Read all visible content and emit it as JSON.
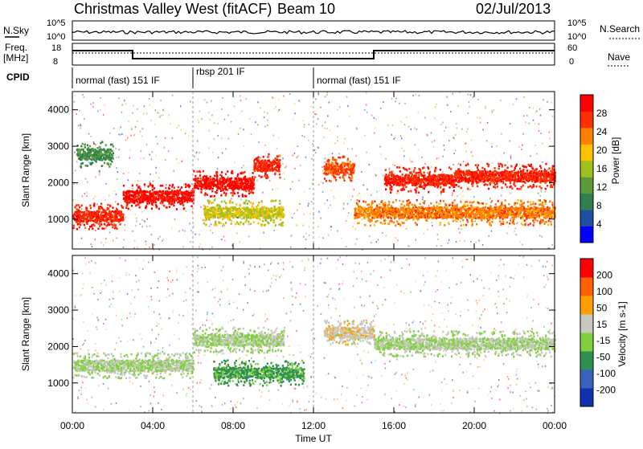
{
  "header": {
    "station": "Christmas Valley West (fitACF)",
    "beam": "Beam 10",
    "date": "02/Jul/2013"
  },
  "strips": {
    "nsky_label": "N.Sky",
    "nsky_ticks": [
      "10^5",
      "10^0"
    ],
    "nsearch_label": "N.Search",
    "nsearch_ticks": [
      "10^5",
      "10^0"
    ],
    "freq_label": "Freq.",
    "freq_unit": "[MHz]",
    "freq_ticks": [
      "18",
      "8"
    ],
    "nave_label": "Nave",
    "nave_ticks": [
      "60",
      "0"
    ],
    "cpid_label": "CPID",
    "cpid_segments": [
      {
        "label": "normal (fast) 151 IF",
        "start_hour": 0,
        "end_hour": 6
      },
      {
        "label": "rbsp 201 IF",
        "start_hour": 6,
        "end_hour": 12
      },
      {
        "label": "normal (fast) 151 IF",
        "start_hour": 12,
        "end_hour": 24
      }
    ]
  },
  "chart_data": [
    {
      "type": "heatmap",
      "name": "power-panel",
      "ylabel": "Slant Range [km]",
      "y_ticks": [
        "4000",
        "3000",
        "2000",
        "1000"
      ],
      "y_tick_values": [
        4000,
        3000,
        2000,
        1000
      ],
      "ylim": [
        180,
        4500
      ],
      "xlim": [
        0,
        24
      ],
      "colorbar": {
        "label": "Power [dB]",
        "ticks": [
          "28",
          "24",
          "20",
          "16",
          "12",
          "8",
          "4"
        ],
        "colors": [
          "#0000ff",
          "#1f4fa0",
          "#2f7f4f",
          "#5a9a3a",
          "#a0c020",
          "#ffc000",
          "#ff8000",
          "#ff3000",
          "#ff0000"
        ],
        "range": [
          0,
          30
        ]
      },
      "bands": [
        {
          "start_hour": 0.0,
          "end_hour": 2.5,
          "range_km": 1100,
          "value": 26
        },
        {
          "start_hour": 2.5,
          "end_hour": 6.0,
          "range_km": 1650,
          "value": 28
        },
        {
          "start_hour": 6.0,
          "end_hour": 9.0,
          "range_km": 2000,
          "value": 28
        },
        {
          "start_hour": 9.0,
          "end_hour": 10.3,
          "range_km": 2500,
          "value": 26
        },
        {
          "start_hour": 6.5,
          "end_hour": 10.5,
          "range_km": 1200,
          "value": 16
        },
        {
          "start_hour": 0.2,
          "end_hour": 2.0,
          "range_km": 2800,
          "value": 10
        },
        {
          "start_hour": 12.5,
          "end_hour": 14.0,
          "range_km": 2400,
          "value": 24
        },
        {
          "start_hour": 15.5,
          "end_hour": 19.0,
          "range_km": 2100,
          "value": 26
        },
        {
          "start_hour": 19.0,
          "end_hour": 24.0,
          "range_km": 2200,
          "value": 26
        },
        {
          "start_hour": 14.0,
          "end_hour": 24.0,
          "range_km": 1200,
          "value": 22
        }
      ]
    },
    {
      "type": "heatmap",
      "name": "velocity-panel",
      "ylabel": "Slant Range [km]",
      "y_ticks": [
        "4000",
        "3000",
        "2000",
        "1000"
      ],
      "y_tick_values": [
        4000,
        3000,
        2000,
        1000
      ],
      "ylim": [
        180,
        4500
      ],
      "xlim": [
        0,
        24
      ],
      "colorbar": {
        "label": "Velocity [m s-1]",
        "ticks": [
          "200",
          "100",
          "50",
          "15",
          "-15",
          "-50",
          "-100",
          "-200"
        ],
        "colors": [
          "#1030b0",
          "#3a60c0",
          "#2f8f4f",
          "#80d040",
          "#c8c8c0",
          "#ffa000",
          "#ff6000",
          "#ff0000"
        ],
        "range": [
          -250,
          250
        ]
      },
      "bands": [
        {
          "start_hour": 0.0,
          "end_hour": 6.0,
          "range_km": 1500,
          "value": 0
        },
        {
          "start_hour": 6.0,
          "end_hour": 10.5,
          "range_km": 2200,
          "value": 0
        },
        {
          "start_hour": 7.0,
          "end_hour": 11.5,
          "range_km": 1300,
          "value": -80
        },
        {
          "start_hour": 12.5,
          "end_hour": 15.0,
          "range_km": 2400,
          "value": 40
        },
        {
          "start_hour": 15.0,
          "end_hour": 24.0,
          "range_km": 2100,
          "value": 0
        }
      ]
    }
  ],
  "xaxis": {
    "label": "Time UT",
    "ticks": [
      "00:00",
      "04:00",
      "08:00",
      "12:00",
      "16:00",
      "20:00",
      "00:00"
    ],
    "tick_hours": [
      0,
      4,
      8,
      12,
      16,
      20,
      24
    ]
  }
}
